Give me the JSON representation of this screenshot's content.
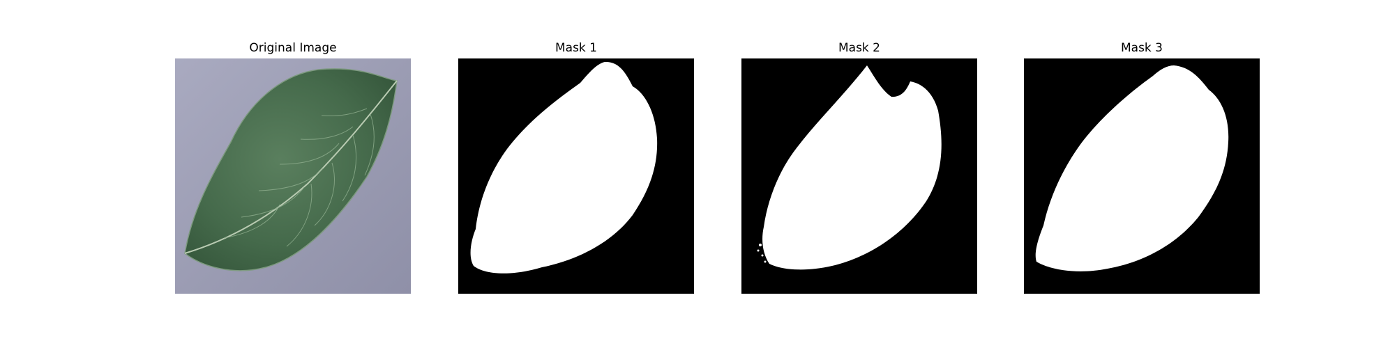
{
  "figure": {
    "panels": [
      {
        "title": "Original Image",
        "kind": "photo",
        "content": "leaf"
      },
      {
        "title": "Mask 1",
        "kind": "mask",
        "content": "leaf-mask"
      },
      {
        "title": "Mask 2",
        "kind": "mask",
        "content": "leaf-mask-notched"
      },
      {
        "title": "Mask 3",
        "kind": "mask",
        "content": "leaf-mask"
      }
    ],
    "colors": {
      "background": "#ffffff",
      "mask_background": "#000000",
      "mask_foreground": "#ffffff",
      "photo_background": "#9b9cb3",
      "leaf_dark": "#3c5f43",
      "leaf_light": "#6f9474",
      "leaf_vein": "#b9cbb2"
    }
  }
}
